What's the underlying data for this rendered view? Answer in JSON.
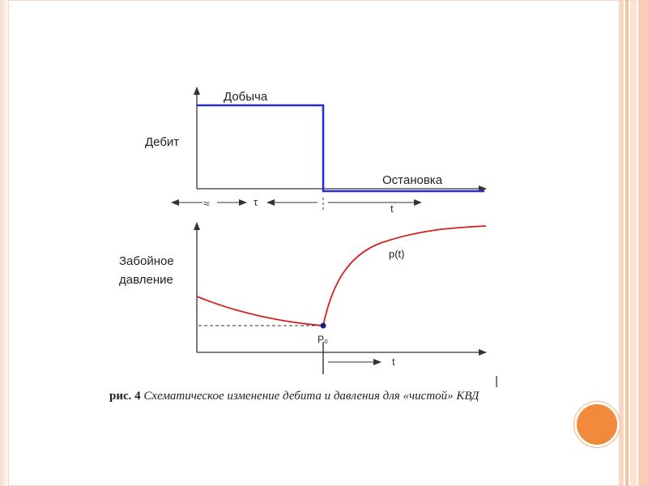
{
  "diagram": {
    "top_chart": {
      "ylabel": "Дебит",
      "label_production": "Добыча",
      "label_stop": "Остановка",
      "axis_symbol_tau": "τ",
      "axis_symbol_t": "t",
      "break_mark": "≈"
    },
    "bottom_chart": {
      "ylabel_line1": "Забойное",
      "ylabel_line2": "давление",
      "curve_label": "p(t)",
      "point_label": "P₀",
      "axis_symbol_t": "t"
    },
    "colors": {
      "flow_line": "#2b2bd0",
      "pressure_curve": "#d42020",
      "axes": "#333333",
      "accent": "#f28a3c"
    }
  },
  "caption": {
    "figure_number": "рис. 4",
    "text": "Схематическое изменение дебита и давления для «чистой» КВД"
  },
  "decorations": {
    "right_circle_icon": "orange-circle"
  }
}
